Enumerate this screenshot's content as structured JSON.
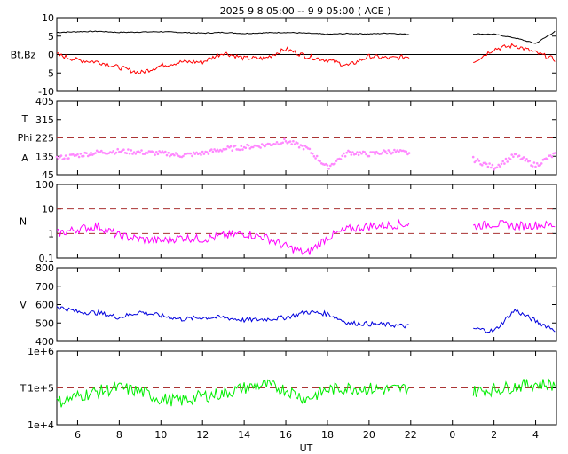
{
  "chart_data": {
    "type": "line",
    "title": "2025  9  8   05:00 -- 9  9   05:00 ( ACE )",
    "xlabel": "UT",
    "x_ticks": [
      "6",
      "8",
      "10",
      "12",
      "14",
      "16",
      "18",
      "20",
      "22",
      "0",
      "2",
      "4"
    ],
    "data_gap": {
      "from": "22:00",
      "to": "23:50"
    },
    "panels": [
      {
        "id": "bt-bz",
        "ylabel": "Bt,Bz",
        "ylim": [
          -10,
          10
        ],
        "yticks": [
          "10",
          "5",
          "0",
          "-5",
          "-10"
        ],
        "zero_line": true,
        "series": [
          {
            "name": "Bt",
            "color": "#000000",
            "values": [
              6.0,
              6.2,
              6.3,
              6.0,
              6.1,
              6.2,
              6.0,
              5.8,
              6.0,
              5.7,
              5.9,
              6.0,
              5.8,
              5.5,
              5.7,
              5.6,
              5.8,
              5.4,
              null,
              null,
              5.6,
              5.5,
              4.5,
              3.0,
              6.5
            ]
          },
          {
            "name": "Bz",
            "color": "#ff0000",
            "values": [
              0.0,
              -1.5,
              -2.0,
              -3.5,
              -5.0,
              -3.0,
              -2.0,
              -2.0,
              0.5,
              -1.0,
              -1.0,
              1.5,
              -0.5,
              -1.5,
              -3.0,
              -0.5,
              -1.0,
              -0.5,
              null,
              null,
              -2.0,
              1.5,
              2.5,
              0.5,
              -1.5
            ]
          }
        ]
      },
      {
        "id": "theta-phi",
        "ylabel_lines": [
          "T",
          "Phi",
          "A"
        ],
        "ylim": [
          45,
          405
        ],
        "yticks": [
          "405",
          "315",
          "225",
          "135",
          "45"
        ],
        "reference_lines": [
          225
        ],
        "series": [
          {
            "name": "Phi",
            "color": "#ff88ff",
            "values": [
              125,
              140,
              155,
              160,
              155,
              150,
              140,
              150,
              170,
              180,
              190,
              210,
              175,
              80,
              155,
              145,
              160,
              150,
              null,
              null,
              120,
              80,
              140,
              90,
              150
            ]
          }
        ]
      },
      {
        "id": "density",
        "ylabel": "N",
        "scale": "log",
        "ylim": [
          0.1,
          100
        ],
        "yticks": [
          "100",
          "10",
          "1",
          "0.1"
        ],
        "reference_lines": [
          10,
          1
        ],
        "series": [
          {
            "name": "N",
            "color": "#ff00ff",
            "values": [
              1.0,
              1.5,
              2.0,
              0.8,
              0.6,
              0.5,
              0.7,
              0.6,
              0.8,
              1.0,
              0.7,
              0.3,
              0.15,
              0.7,
              1.5,
              2.0,
              2.2,
              2.5,
              null,
              null,
              2.0,
              2.5,
              2.0,
              2.2,
              2.2
            ]
          }
        ]
      },
      {
        "id": "speed",
        "ylabel": "V",
        "ylim": [
          400,
          800
        ],
        "yticks": [
          "800",
          "700",
          "600",
          "500",
          "400"
        ],
        "series": [
          {
            "name": "V",
            "color": "#0000dd",
            "values": [
              590,
              560,
              555,
              530,
              560,
              540,
              520,
              530,
              530,
              515,
              520,
              530,
              560,
              550,
              500,
              495,
              490,
              480,
              null,
              null,
              470,
              455,
              570,
              510,
              460
            ]
          }
        ]
      },
      {
        "id": "temperature",
        "ylabel": "T",
        "scale": "log",
        "ylim": [
          10000,
          1000000
        ],
        "yticks": [
          "1e+6",
          "1e+5",
          "1e+4"
        ],
        "reference_lines": [
          100000
        ],
        "series": [
          {
            "name": "T",
            "color": "#00ee00",
            "values": [
              40000,
              60000,
              80000,
              100000,
              80000,
              50000,
              45000,
              60000,
              70000,
              100000,
              120000,
              90000,
              50000,
              90000,
              100000,
              95000,
              90000,
              100000,
              null,
              null,
              80000,
              90000,
              110000,
              130000,
              120000
            ]
          }
        ]
      }
    ]
  }
}
